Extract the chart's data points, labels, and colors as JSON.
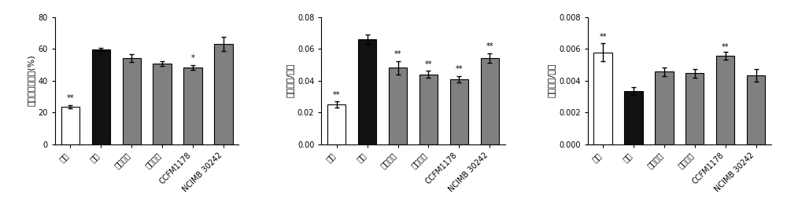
{
  "charts": [
    {
      "ylabel": "体重变化百分比(%)",
      "ylim": [
        0,
        80
      ],
      "yticks": [
        0,
        20,
        40,
        60,
        80
      ],
      "categories": [
        "空白",
        "造模",
        "辛伐他汀",
        "二甲双胍",
        "CCFM1178",
        "NCIMB 30242"
      ],
      "values": [
        23.5,
        59.5,
        54.0,
        50.5,
        48.0,
        63.0
      ],
      "errors": [
        1.0,
        1.0,
        2.5,
        1.5,
        1.5,
        4.5
      ],
      "bar_colors": [
        "#ffffff",
        "#111111",
        "#808080",
        "#808080",
        "#808080",
        "#808080"
      ],
      "significance": [
        "**",
        "",
        "",
        "",
        "*",
        ""
      ],
      "sig_positions": [
        26.5,
        0,
        0,
        0,
        51.5,
        0
      ]
    },
    {
      "ylabel": "白色脂肪/体重",
      "ylim": [
        0,
        0.08
      ],
      "yticks": [
        0.0,
        0.02,
        0.04,
        0.06,
        0.08
      ],
      "categories": [
        "空白",
        "造模",
        "辛伐他汀",
        "二甲双胍",
        "CCFM1178",
        "NCIMB 30242"
      ],
      "values": [
        0.025,
        0.066,
        0.048,
        0.044,
        0.041,
        0.054
      ],
      "errors": [
        0.002,
        0.003,
        0.004,
        0.002,
        0.002,
        0.003
      ],
      "bar_colors": [
        "#ffffff",
        "#111111",
        "#808080",
        "#808080",
        "#808080",
        "#808080"
      ],
      "significance": [
        "**",
        "",
        "**",
        "**",
        "**",
        "**"
      ],
      "sig_positions": [
        0.0285,
        0,
        0.054,
        0.0478,
        0.0448,
        0.059
      ]
    },
    {
      "ylabel": "棕色脂肪/体重",
      "ylim": [
        0,
        0.008
      ],
      "yticks": [
        0.0,
        0.002,
        0.004,
        0.006,
        0.008
      ],
      "categories": [
        "空白",
        "造模",
        "辛伐他汀",
        "二甲双胍",
        "CCFM1178",
        "NCIMB 30242"
      ],
      "values": [
        0.00578,
        0.00335,
        0.00455,
        0.00445,
        0.00555,
        0.00432
      ],
      "errors": [
        0.00055,
        0.00025,
        0.00025,
        0.00025,
        0.00025,
        0.0004
      ],
      "bar_colors": [
        "#ffffff",
        "#111111",
        "#808080",
        "#808080",
        "#808080",
        "#808080"
      ],
      "significance": [
        "**",
        "",
        "",
        "",
        "**",
        ""
      ],
      "sig_positions": [
        0.00648,
        0,
        0,
        0,
        0.00585,
        0
      ]
    }
  ],
  "background_color": "#ffffff",
  "bar_edge_color": "#000000",
  "error_color": "#000000",
  "tick_fontsize": 7,
  "label_fontsize": 8,
  "sig_fontsize": 7
}
